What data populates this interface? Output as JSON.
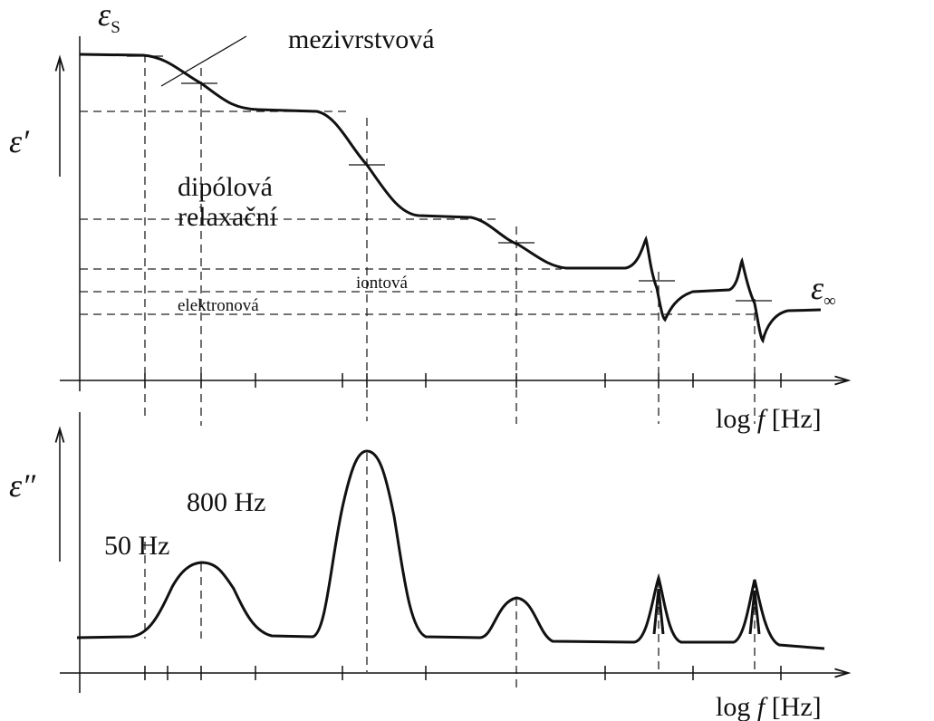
{
  "labels": {
    "eps_s": {
      "symbol": "ε",
      "sub": "S"
    },
    "interlayer": "mezivrstvová",
    "eps_real": "ε′",
    "dipole": "dipólová",
    "relaxation": "relaxační",
    "ionic": "iontová",
    "electronic": "elektronová",
    "eps_inf": {
      "symbol": "ε",
      "sub": "∞"
    },
    "x_axis_top": {
      "prefix": "log ",
      "var": "f",
      "unit": "[Hz]"
    },
    "eps_imag": "ε″",
    "hz800": "800 Hz",
    "hz50": "50 Hz",
    "x_axis_bottom": {
      "prefix": "log ",
      "var": "f",
      "unit": "[Hz]"
    }
  }
}
